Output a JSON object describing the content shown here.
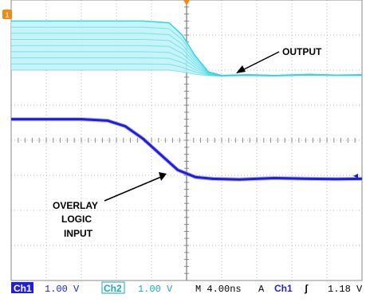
{
  "colors": {
    "background": "#ffffff",
    "grid": "#b9b9b9",
    "ch1": "#1f1fd6",
    "ch1_glow": "#8c8cf0",
    "ch2": "#33d4e6",
    "ch2_fill": "#bdf2f7",
    "marker": "#f08a12",
    "status_ch": "#1f1fd6",
    "status_ch2": "#1aa9b9",
    "text": "#000000"
  },
  "annotations": {
    "output": "OUTPUT",
    "input_line1": "OVERLAY",
    "input_line2": "LOGIC",
    "input_line3": "INPUT"
  },
  "status_bar": {
    "ch1_label": "Ch1",
    "ch1_scale": "1.00 V",
    "ch2_label": "Ch2",
    "ch2_scale": "1.00 V",
    "timebase": "M 4.00ns",
    "trigger_mode": "A",
    "trigger_source": "Ch1",
    "trigger_slope": "ʃ",
    "trigger_level": "1.18 V"
  },
  "chart_data": {
    "type": "line",
    "grid": true,
    "time_per_division_ns": 4,
    "volts_per_division": 1.0,
    "x_divisions": 10,
    "y_divisions": 8,
    "series": [
      {
        "name": "Ch1",
        "color": "#1f1fd6",
        "x": [
          0,
          4,
          8,
          11,
          13,
          15,
          17,
          19,
          21,
          23,
          26,
          30,
          34,
          37,
          40
        ],
        "y": [
          4.6,
          4.6,
          4.6,
          4.56,
          4.4,
          4.05,
          3.6,
          3.15,
          2.95,
          2.9,
          2.88,
          2.92,
          2.9,
          2.89,
          2.9
        ]
      },
      {
        "name": "Ch2",
        "color": "#33d4e6",
        "x": [
          0,
          5,
          10,
          15,
          18,
          19.5,
          21,
          22.5,
          24,
          27,
          30,
          34,
          37,
          40
        ],
        "y": [
          7.4,
          7.4,
          7.4,
          7.4,
          7.35,
          7.0,
          6.4,
          5.95,
          5.85,
          5.87,
          5.85,
          5.88,
          5.86,
          5.87
        ],
        "y_band_low": [
          6.0,
          6.0,
          6.0,
          6.0,
          6.0,
          5.95,
          5.88,
          5.84,
          5.83,
          5.84,
          5.83,
          5.85,
          5.84,
          5.84
        ]
      }
    ]
  }
}
